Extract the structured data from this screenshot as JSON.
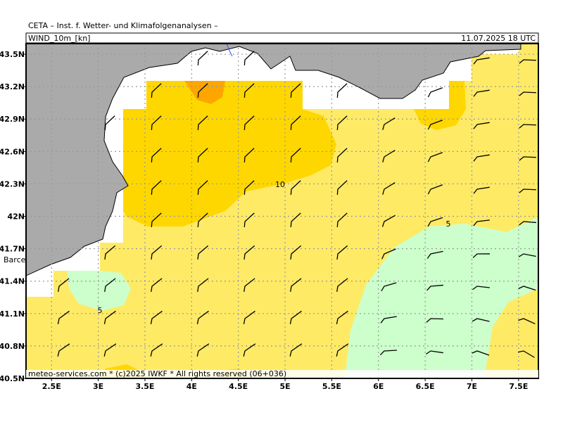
{
  "header": {
    "title": "CETA – Inst. f. Wetter- und Klimafolgenanalysen –",
    "product": "WIND_10m_[kn]",
    "valid": "11.07.2025 18 UTC"
  },
  "map": {
    "xlim": [
      2.227,
      7.712
    ],
    "ylim": [
      40.5,
      43.598
    ],
    "xticks": [
      {
        "value": 2.5,
        "label": "2.5E"
      },
      {
        "value": 3,
        "label": "3E"
      },
      {
        "value": 3.5,
        "label": "3.5E"
      },
      {
        "value": 4,
        "label": "4E"
      },
      {
        "value": 4.5,
        "label": "4.5E"
      },
      {
        "value": 5,
        "label": "5E"
      },
      {
        "value": 5.5,
        "label": "5.5E"
      },
      {
        "value": 6,
        "label": "6E"
      },
      {
        "value": 6.5,
        "label": "6.5E"
      },
      {
        "value": 7,
        "label": "7E"
      },
      {
        "value": 7.5,
        "label": "7.5E"
      }
    ],
    "yticks": [
      {
        "value": 40.5,
        "label": "40.5N"
      },
      {
        "value": 40.8,
        "label": "40.8N"
      },
      {
        "value": 41.1,
        "label": "41.1N"
      },
      {
        "value": 41.4,
        "label": "41.4N"
      },
      {
        "value": 41.7,
        "label": "41.7N"
      },
      {
        "value": 42,
        "label": "42N"
      },
      {
        "value": 42.3,
        "label": "42.3N"
      },
      {
        "value": 42.6,
        "label": "42.6N"
      },
      {
        "value": 42.9,
        "label": "42.9N"
      },
      {
        "value": 43.2,
        "label": "43.2N"
      },
      {
        "value": 43.5,
        "label": "43.5N"
      }
    ],
    "contour_labels": [
      "10",
      "5",
      "5"
    ],
    "place_label": "Barce"
  },
  "footer": "meteo-services.com * (c)2025 IWKF * All rights reserved (06+036)"
}
